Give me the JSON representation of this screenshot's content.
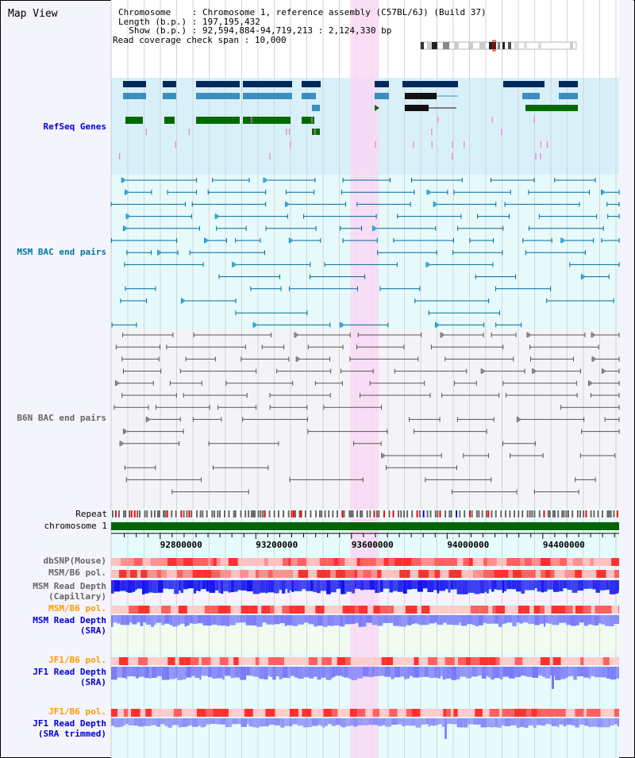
{
  "title": "Map View",
  "info": {
    "chromosome_label": "Chromosome    ",
    "chromosome_value": "Chromosome 1, reference assembly (C57BL/6J) (Build 37)",
    "length_label": "Length (b.p.) ",
    "length_value": "197,195,432",
    "show_label": "  Show (b.p.) ",
    "show_value": "92,594,884-94,719,213 : 2,124,330 bp",
    "coverage_label": "Read coverage check span ",
    "coverage_value": "10,000"
  },
  "range": {
    "start": 92594884,
    "end": 94719213
  },
  "highlight": {
    "start": 93595000,
    "end": 93715000
  },
  "tracks": {
    "refseq": "RefSeq Genes",
    "msm_bac": "MSM BAC end pairs",
    "b6n_bac": "B6N BAC end pairs",
    "repeat": "Repeat",
    "chromosome": "chromosome 1",
    "dbsnp": "dbSNP(Mouse)",
    "msm_b6_pol": "MSM/B6 pol.",
    "msm_depth_cap": "MSM Read Depth\n(Capillary)",
    "msm_b6_pol2": "MSM/B6 pol.",
    "msm_depth_sra": "MSM Read Depth\n(SRA)",
    "jf1_b6_pol": "JF1/B6 pol.",
    "jf1_depth_sra": "JF1 Read Depth\n(SRA)",
    "jf1_b6_pol2": "JF1/B6 pol.",
    "jf1_depth_trim": "JF1 Read Depth\n(SRA trimmed)"
  },
  "axis_ticks": [
    92800000,
    93200000,
    93600000,
    94000000,
    94400000
  ],
  "colors": {
    "gene_dark": "#002a5c",
    "gene_mid": "#3a8fbf",
    "gene_green": "#006a00",
    "msm": "#006a9a",
    "b6n": "#555555",
    "chrom": "#006400",
    "depth": "#1010ee",
    "depth_sra": "#7878f8",
    "pol": "#ff2020"
  }
}
